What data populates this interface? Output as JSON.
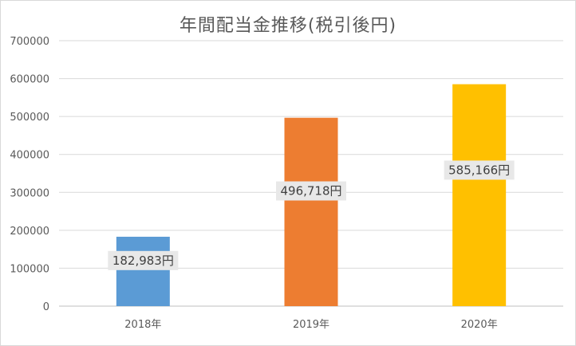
{
  "chart_data": {
    "type": "bar",
    "title": "年間配当金推移(税引後円)",
    "categories": [
      "2018年",
      "2019年",
      "2020年"
    ],
    "values": [
      182983,
      496718,
      585166
    ],
    "data_labels": [
      "182,983円",
      "496,718円",
      "585,166円"
    ],
    "colors": [
      "#5b9bd5",
      "#ed7d31",
      "#ffc000"
    ],
    "yticks": [
      "0",
      "100000",
      "200000",
      "300000",
      "400000",
      "500000",
      "600000",
      "700000"
    ],
    "ylim": [
      0,
      700000
    ],
    "grid": true,
    "legend": "none"
  }
}
